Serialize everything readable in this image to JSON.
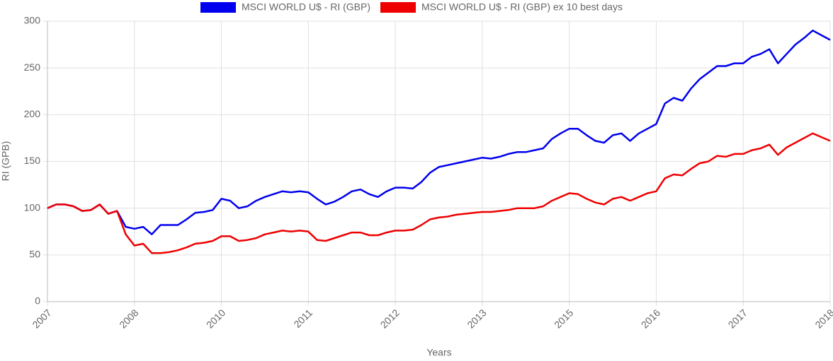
{
  "chart_data": {
    "type": "line",
    "legend": "top",
    "xlabel": "Years",
    "ylabel": "RI (GPB)",
    "grid": true,
    "categories": [
      "2007",
      null,
      null,
      null,
      null,
      null,
      null,
      null,
      null,
      null,
      "2008",
      null,
      null,
      null,
      null,
      null,
      null,
      null,
      null,
      null,
      "2010",
      null,
      null,
      null,
      null,
      null,
      null,
      null,
      null,
      null,
      "2011",
      null,
      null,
      null,
      null,
      null,
      null,
      null,
      null,
      null,
      "2012",
      null,
      null,
      null,
      null,
      null,
      null,
      null,
      null,
      null,
      "2013",
      null,
      null,
      null,
      null,
      null,
      null,
      null,
      null,
      null,
      "2015",
      null,
      null,
      null,
      null,
      null,
      null,
      null,
      null,
      null,
      "2016",
      null,
      null,
      null,
      null,
      null,
      null,
      null,
      null,
      null,
      "2017",
      null,
      null,
      null,
      null,
      null,
      null,
      null,
      null,
      null,
      "2018"
    ],
    "ylim": [
      0,
      300
    ],
    "yticks": [
      0,
      50,
      100,
      150,
      200,
      250,
      300
    ],
    "series": [
      {
        "name": "MSCI WORLD U$ - RI (GBP)",
        "color": "#0000ee",
        "values": [
          100,
          104,
          104,
          102,
          97,
          98,
          104,
          94,
          97,
          80,
          78,
          80,
          72,
          82,
          82,
          82,
          88,
          95,
          96,
          98,
          110,
          108,
          100,
          102,
          108,
          112,
          115,
          118,
          117,
          118,
          117,
          110,
          104,
          107,
          112,
          118,
          120,
          115,
          112,
          118,
          122,
          122,
          121,
          128,
          138,
          144,
          146,
          148,
          150,
          152,
          154,
          153,
          155,
          158,
          160,
          160,
          162,
          164,
          174,
          180,
          185,
          185,
          178,
          172,
          170,
          178,
          180,
          172,
          180,
          185,
          190,
          212,
          218,
          215,
          228,
          238,
          245,
          252,
          252,
          255,
          255,
          262,
          265,
          270,
          255,
          265,
          275,
          282,
          290,
          285,
          280
        ]
      },
      {
        "name": "MSCI WORLD U$ - RI (GBP) ex 10 best days",
        "color": "#ee0000",
        "values": [
          100,
          104,
          104,
          102,
          97,
          98,
          104,
          94,
          97,
          72,
          60,
          62,
          52,
          52,
          53,
          55,
          58,
          62,
          63,
          65,
          70,
          70,
          65,
          66,
          68,
          72,
          74,
          76,
          75,
          76,
          75,
          66,
          65,
          68,
          71,
          74,
          74,
          71,
          71,
          74,
          76,
          76,
          77,
          82,
          88,
          90,
          91,
          93,
          94,
          95,
          96,
          96,
          97,
          98,
          100,
          100,
          100,
          102,
          108,
          112,
          116,
          115,
          110,
          106,
          104,
          110,
          112,
          108,
          112,
          116,
          118,
          132,
          136,
          135,
          142,
          148,
          150,
          156,
          155,
          158,
          158,
          162,
          164,
          168,
          157,
          165,
          170,
          175,
          180,
          176,
          172
        ]
      }
    ]
  }
}
